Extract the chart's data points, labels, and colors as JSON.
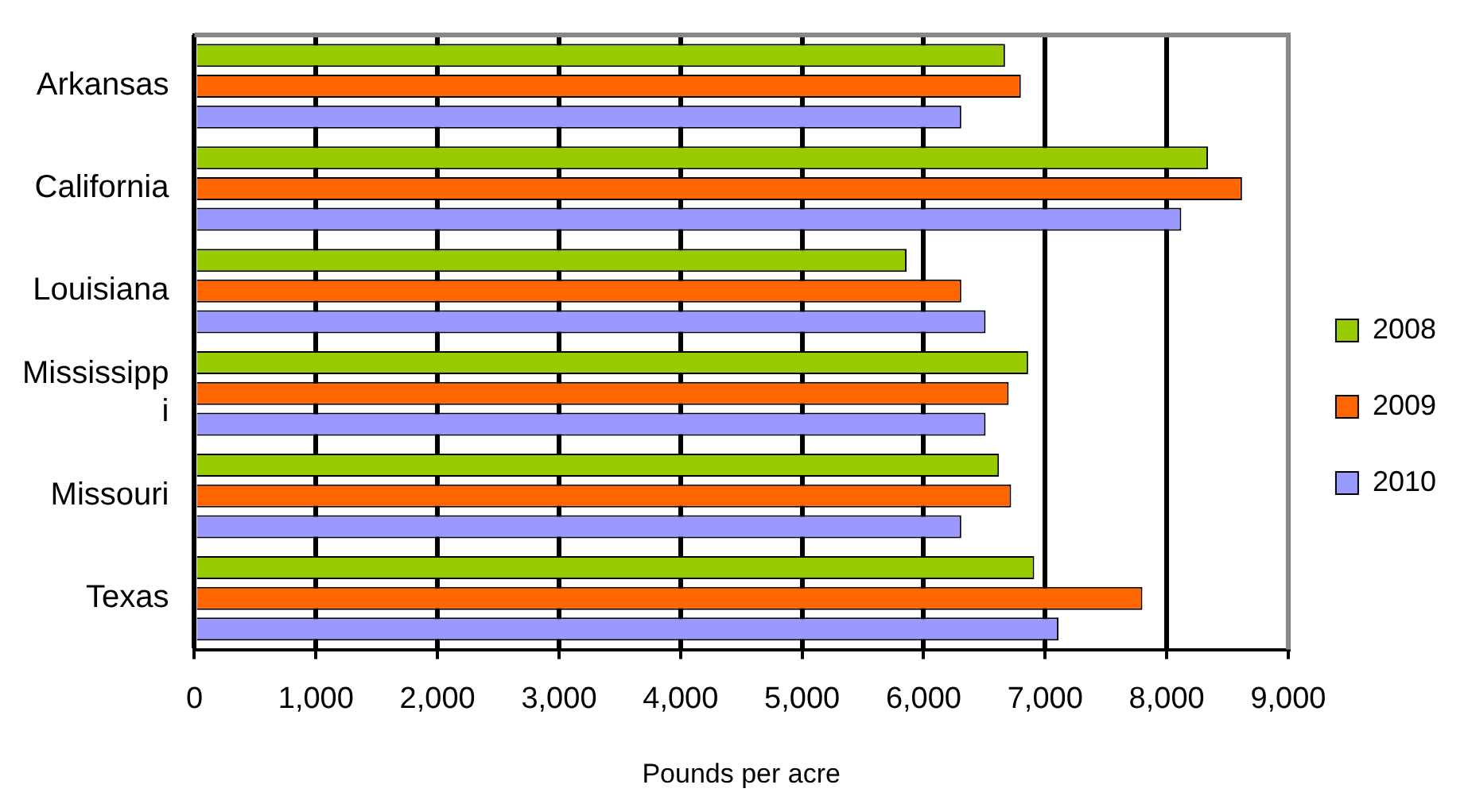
{
  "chart_data": {
    "type": "bar",
    "orientation": "horizontal",
    "xlabel": "Pounds per acre",
    "categories": [
      "Arkansas",
      "California",
      "Louisiana",
      "Mississippi",
      "Missouri",
      "Texas"
    ],
    "series": [
      {
        "name": "2008",
        "color": "#99cc00",
        "values": [
          6670,
          8340,
          5860,
          6860,
          6620,
          6910
        ]
      },
      {
        "name": "2009",
        "color": "#ff6600",
        "values": [
          6800,
          8620,
          6310,
          6700,
          6720,
          7800
        ]
      },
      {
        "name": "2010",
        "color": "#9999ff",
        "values": [
          6310,
          8120,
          6510,
          6510,
          6310,
          7110
        ]
      }
    ],
    "xlim": [
      0,
      9000
    ],
    "xticks": [
      {
        "value": 0,
        "label": "0"
      },
      {
        "value": 1000,
        "label": "1,000"
      },
      {
        "value": 2000,
        "label": "2,000"
      },
      {
        "value": 3000,
        "label": "3,000"
      },
      {
        "value": 4000,
        "label": "4,000"
      },
      {
        "value": 5000,
        "label": "5,000"
      },
      {
        "value": 6000,
        "label": "6,000"
      },
      {
        "value": 7000,
        "label": "7,000"
      },
      {
        "value": 8000,
        "label": "8,000"
      },
      {
        "value": 9000,
        "label": "9,000"
      }
    ],
    "grid": "x",
    "legend": "right"
  }
}
